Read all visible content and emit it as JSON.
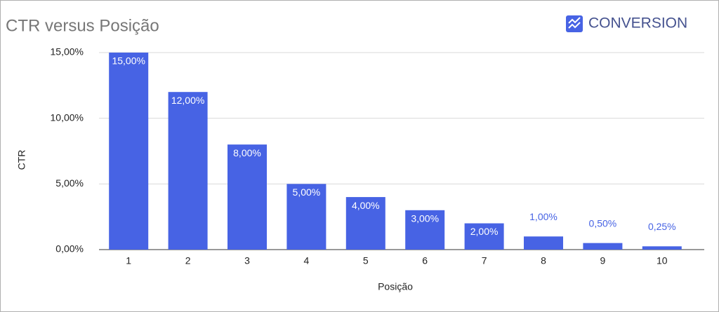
{
  "chart_data": {
    "type": "bar",
    "title": "CTR versus Posição",
    "brand": "CONVERSION",
    "x_label": "Posição",
    "y_label": "CTR",
    "categories": [
      "1",
      "2",
      "3",
      "4",
      "5",
      "6",
      "7",
      "8",
      "9",
      "10"
    ],
    "values": [
      15,
      12,
      8,
      5,
      4,
      3,
      2,
      1,
      0.5,
      0.25
    ],
    "value_labels": [
      "15,00%",
      "12,00%",
      "8,00%",
      "5,00%",
      "4,00%",
      "3,00%",
      "2,00%",
      "1,00%",
      "0,50%",
      "0,25%"
    ],
    "color": "#4763e4",
    "ylim": [
      0,
      15
    ],
    "yticks": [
      {
        "value": 0,
        "label": "0,00%"
      },
      {
        "value": 5,
        "label": "5,00%"
      },
      {
        "value": 10,
        "label": "10,00%"
      },
      {
        "value": 15,
        "label": "15,00%"
      }
    ],
    "grid": true
  }
}
